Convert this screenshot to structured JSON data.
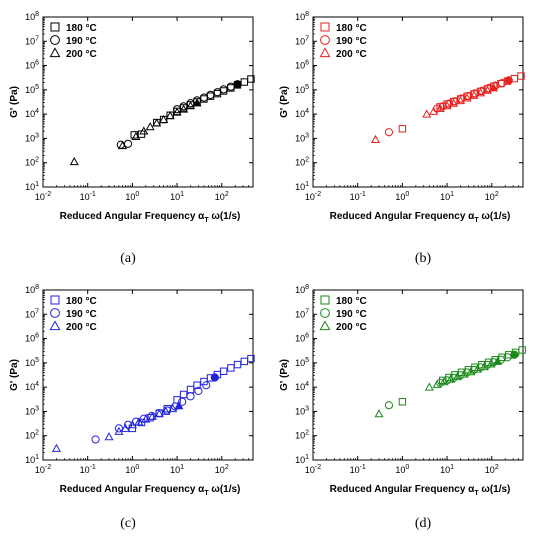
{
  "chart_data": [
    {
      "type": "scatter",
      "caption": "(a)",
      "xlabel": "Reduced Angular Frequency",
      "xlabel_symbol": "α",
      "xlabel_sub": "T",
      "xlabel_suffix": " ω(1/s)",
      "ylabel": "G' (Pa)",
      "xscale": "log",
      "yscale": "log",
      "xlim": [
        0.01,
        500
      ],
      "ylim": [
        10,
        100000000
      ],
      "x_ticks": [
        "10",
        "10",
        "10",
        "10",
        "10",
        "10"
      ],
      "x_tick_exponents": [
        "-2",
        "-1",
        "0",
        "1",
        "2",
        ""
      ],
      "y_ticks": [
        "10",
        "10",
        "10",
        "10",
        "10",
        "10",
        "10",
        "10"
      ],
      "y_tick_exponents": [
        "1",
        "2",
        "3",
        "4",
        "5",
        "6",
        "7",
        "8"
      ],
      "legend_position": "top-left",
      "color": "#000000",
      "series": [
        {
          "name": "180 °C",
          "marker": "square",
          "x": [
            1.1,
            1.6,
            3.5,
            5,
            7,
            10,
            14,
            20,
            28,
            40,
            56,
            80,
            110,
            160,
            225,
            320,
            450
          ],
          "y": [
            1400,
            1500,
            4500,
            6000,
            9000,
            13000,
            18000,
            24000,
            32000,
            42000,
            55000,
            70000,
            90000,
            120000,
            160000,
            210000,
            280000
          ]
        },
        {
          "name": "190 °C",
          "marker": "circle",
          "x": [
            0.55,
            0.8,
            10,
            14,
            20,
            28,
            40,
            56,
            80,
            110,
            160,
            225
          ],
          "y": [
            550,
            600,
            16000,
            21000,
            28000,
            37000,
            48000,
            62000,
            80000,
            105000,
            135000,
            170000
          ]
        },
        {
          "name": "200 °C",
          "marker": "triangle",
          "x": [
            0.05,
            0.6,
            1.2,
            1.8,
            2.5,
            3.5,
            5,
            7,
            10,
            14,
            20,
            28
          ],
          "y": [
            110,
            500,
            1200,
            2000,
            3000,
            4300,
            6000,
            8500,
            12000,
            16000,
            22000,
            29000
          ]
        }
      ]
    },
    {
      "type": "scatter",
      "caption": "(b)",
      "xlabel": "Reduced Angular Frequency",
      "xlabel_symbol": "α",
      "xlabel_sub": "T",
      "xlabel_suffix": " ω(1/s)",
      "ylabel": "G' (Pa)",
      "xscale": "log",
      "yscale": "log",
      "xlim": [
        0.01,
        500
      ],
      "ylim": [
        10,
        100000000
      ],
      "x_ticks": [
        "10",
        "10",
        "10",
        "10",
        "10",
        "10"
      ],
      "x_tick_exponents": [
        "-2",
        "-1",
        "0",
        "1",
        "2",
        ""
      ],
      "y_ticks": [
        "10",
        "10",
        "10",
        "10",
        "10",
        "10",
        "10",
        "10"
      ],
      "y_tick_exponents": [
        "1",
        "2",
        "3",
        "4",
        "5",
        "6",
        "7",
        "8"
      ],
      "legend_position": "top-left",
      "color": "#e8201e",
      "series": [
        {
          "name": "180 °C",
          "marker": "square",
          "x": [
            1.0,
            7,
            10,
            14,
            20,
            28,
            40,
            56,
            80,
            110,
            160,
            225,
            320,
            450
          ],
          "y": [
            2500,
            20000,
            26000,
            33000,
            42000,
            54000,
            68000,
            86000,
            110000,
            140000,
            180000,
            230000,
            290000,
            370000
          ]
        },
        {
          "name": "190 °C",
          "marker": "circle",
          "x": [
            0.5,
            6,
            8,
            11,
            15,
            21,
            30,
            42,
            60,
            85,
            120,
            170,
            240
          ],
          "y": [
            1800,
            17000,
            21000,
            27000,
            34000,
            44000,
            56000,
            72000,
            92000,
            118000,
            150000,
            190000,
            245000
          ]
        },
        {
          "name": "200 °C",
          "marker": "triangle",
          "x": [
            0.25,
            3.5,
            5,
            7,
            10,
            14,
            20,
            28,
            40,
            56,
            80,
            110
          ],
          "y": [
            900,
            10000,
            13000,
            17000,
            22000,
            28000,
            36000,
            46000,
            59000,
            75000,
            96000,
            120000
          ]
        }
      ]
    },
    {
      "type": "scatter",
      "caption": "(c)",
      "xlabel": "Reduced Angular Frequency",
      "xlabel_symbol": "α",
      "xlabel_sub": "T",
      "xlabel_suffix": " ω(1/s)",
      "ylabel": "G' (Pa)",
      "xscale": "log",
      "yscale": "log",
      "xlim": [
        0.01,
        500
      ],
      "ylim": [
        10,
        100000000
      ],
      "x_ticks": [
        "10",
        "10",
        "10",
        "10",
        "10",
        "10"
      ],
      "x_tick_exponents": [
        "-2",
        "-1",
        "0",
        "1",
        "2",
        ""
      ],
      "y_ticks": [
        "10",
        "10",
        "10",
        "10",
        "10",
        "10",
        "10",
        "10"
      ],
      "y_tick_exponents": [
        "1",
        "2",
        "3",
        "4",
        "5",
        "6",
        "7",
        "8"
      ],
      "legend_position": "top-left",
      "color": "#2222dd",
      "series": [
        {
          "name": "180 °C",
          "marker": "square",
          "x": [
            1.0,
            1.6,
            2.5,
            4,
            6,
            10,
            14,
            20,
            28,
            40,
            56,
            80,
            110,
            160,
            225,
            320,
            450
          ],
          "y": [
            200,
            350,
            550,
            850,
            1300,
            3000,
            5000,
            8000,
            12000,
            17000,
            24000,
            33000,
            45000,
            62000,
            85000,
            115000,
            150000
          ]
        },
        {
          "name": "190 °C",
          "marker": "circle",
          "x": [
            0.15,
            0.5,
            0.8,
            1.2,
            1.8,
            2.7,
            4,
            6,
            9,
            13,
            20,
            30,
            45,
            70
          ],
          "y": [
            70,
            200,
            280,
            380,
            500,
            650,
            850,
            1100,
            1600,
            2500,
            4200,
            7000,
            12000,
            25000
          ]
        },
        {
          "name": "200 °C",
          "marker": "triangle",
          "x": [
            0.02,
            0.3,
            0.5,
            0.7,
            1.0,
            1.4,
            2,
            2.8,
            4,
            5.6,
            8,
            11
          ],
          "y": [
            30,
            90,
            150,
            200,
            280,
            370,
            480,
            620,
            800,
            1000,
            1300,
            1700
          ]
        }
      ]
    },
    {
      "type": "scatter",
      "caption": "(d)",
      "xlabel": "Reduced Angular Frequency",
      "xlabel_symbol": "α",
      "xlabel_sub": "T",
      "xlabel_suffix": " ω(1/s)",
      "ylabel": "G' (Pa)",
      "xscale": "log",
      "yscale": "log",
      "xlim": [
        0.01,
        500
      ],
      "ylim": [
        10,
        100000000
      ],
      "x_ticks": [
        "10",
        "10",
        "10",
        "10",
        "10",
        "10"
      ],
      "x_tick_exponents": [
        "-2",
        "-1",
        "0",
        "1",
        "2",
        ""
      ],
      "y_ticks": [
        "10",
        "10",
        "10",
        "10",
        "10",
        "10",
        "10",
        "10"
      ],
      "y_tick_exponents": [
        "1",
        "2",
        "3",
        "4",
        "5",
        "6",
        "7",
        "8"
      ],
      "legend_position": "top-left",
      "color": "#1a8a1a",
      "series": [
        {
          "name": "180 °C",
          "marker": "square",
          "x": [
            1.0,
            8,
            11,
            15,
            21,
            30,
            42,
            60,
            85,
            120,
            170,
            240,
            340,
            480
          ],
          "y": [
            2500,
            19000,
            25000,
            32000,
            41000,
            52000,
            66000,
            84000,
            106000,
            135000,
            170000,
            215000,
            270000,
            340000
          ]
        },
        {
          "name": "190 °C",
          "marker": "circle",
          "x": [
            0.5,
            7,
            10,
            14,
            20,
            28,
            40,
            56,
            80,
            110,
            160,
            225,
            320
          ],
          "y": [
            1800,
            15000,
            19000,
            24000,
            31000,
            40000,
            51000,
            65000,
            83000,
            106000,
            135000,
            170000,
            215000
          ]
        },
        {
          "name": "200 °C",
          "marker": "triangle",
          "x": [
            0.3,
            4,
            6,
            8.5,
            12,
            17,
            24,
            34,
            48,
            68,
            96,
            135
          ],
          "y": [
            800,
            10000,
            13000,
            16500,
            21000,
            27000,
            34000,
            43000,
            55000,
            70000,
            89000,
            115000
          ]
        }
      ]
    }
  ]
}
